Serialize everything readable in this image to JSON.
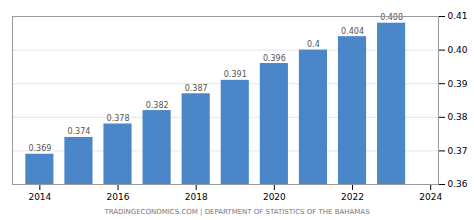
{
  "chart_data": {
    "type": "bar",
    "x": [
      2014,
      2015,
      2016,
      2017,
      2018,
      2019,
      2020,
      2021,
      2022,
      2023
    ],
    "values": [
      0.369,
      0.374,
      0.378,
      0.382,
      0.387,
      0.391,
      0.396,
      0.4,
      0.404,
      0.408
    ],
    "color": "#4a86c8",
    "data_labels": true,
    "xlim": [
      2013.3,
      2024.2
    ],
    "xticks": [
      2014,
      2016,
      2018,
      2020,
      2022,
      2024
    ],
    "ylim": [
      0.36,
      0.41
    ],
    "yticks": [
      0.36,
      0.37,
      0.38,
      0.39,
      {
        "value": 0.4,
        "label": "0.40"
      },
      0.41
    ],
    "grid": true,
    "annotations": [
      "TRADINGECONOMICS.COM | DEPARTMENT OF STATISTICS OF THE BAHAMAS"
    ]
  }
}
